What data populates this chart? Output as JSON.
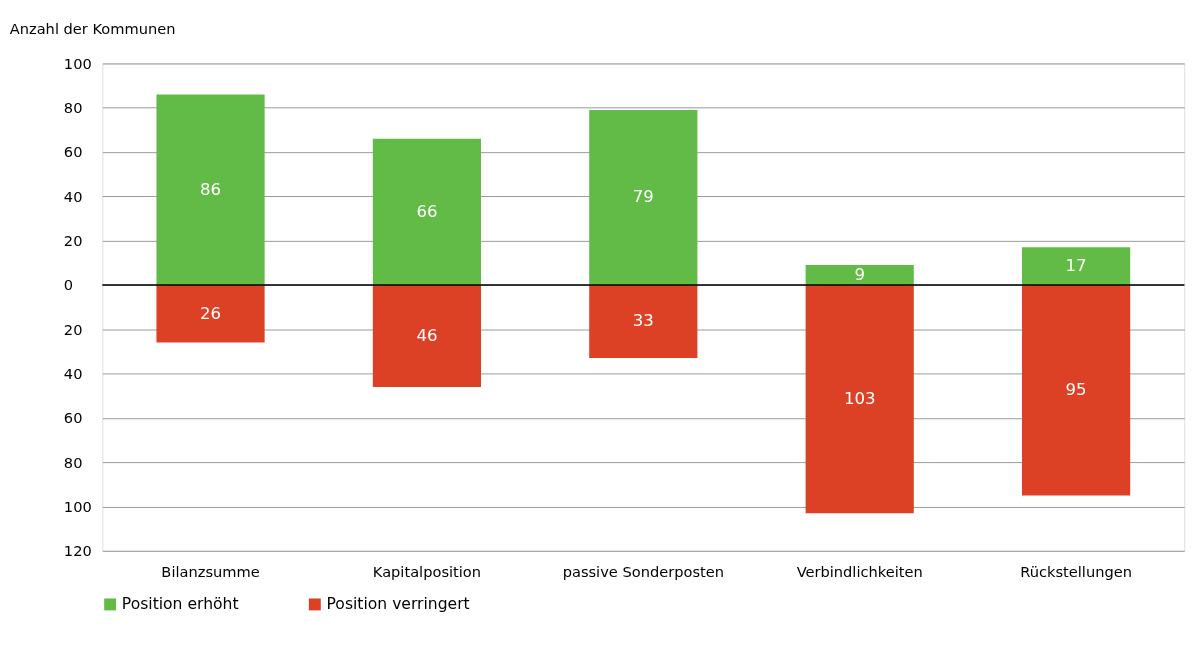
{
  "chart_data": {
    "type": "bar",
    "ylabel": "Anzahl der Kommunen",
    "categories": [
      "Bilanzsumme",
      "Kapitalposition",
      "passive Sonderposten",
      "Verbindlichkeiten",
      "Rückstellungen"
    ],
    "series": [
      {
        "name": "Position erhöht",
        "color": "#62bb46",
        "values": [
          86,
          66,
          79,
          9,
          17
        ],
        "base": [
          0,
          0,
          0,
          0,
          0
        ],
        "data_labels": true
      },
      {
        "name": "Position verringert",
        "color": "#dc4126",
        "values": [
          26,
          46,
          33,
          103,
          95
        ],
        "base": [
          -26,
          -46,
          -33,
          -103,
          -95
        ],
        "data_labels": true
      }
    ],
    "ylim": [
      -120,
      100
    ],
    "yticks": [
      100,
      80,
      60,
      40,
      20,
      0,
      {
        "value": -20,
        "label": "20"
      },
      {
        "value": -40,
        "label": "40"
      },
      {
        "value": -60,
        "label": "60"
      },
      {
        "value": -80,
        "label": "80"
      },
      {
        "value": -100,
        "label": "100"
      },
      {
        "value": -120,
        "label": "120"
      }
    ],
    "ref_lines": [
      {
        "axis": "y",
        "value": 0,
        "color": "#000000",
        "line_style": "solid"
      }
    ],
    "grid": "y",
    "legend": "bottom"
  }
}
